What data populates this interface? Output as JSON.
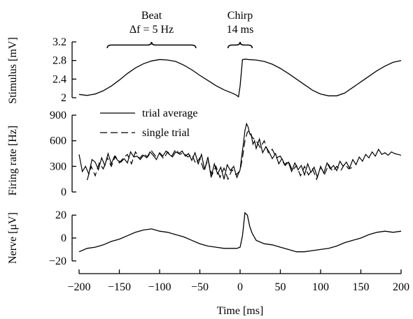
{
  "chart_data": [
    {
      "type": "line",
      "panel": "stimulus",
      "ylabel": "Stimulus [mV]",
      "ylim": [
        2.0,
        3.2
      ],
      "yticks": [
        2,
        2.4,
        2.8,
        3.2
      ],
      "ytick_labels": [
        "2",
        "2.4",
        "2.8",
        "3.2"
      ],
      "xlim": [
        -200,
        200
      ],
      "annotations": [
        {
          "label": "Beat",
          "sublabel": "Δf = 5 Hz",
          "x_range": [
            -165,
            -55
          ]
        },
        {
          "label": "Chirp",
          "sublabel": "14 ms",
          "x_range": [
            -15,
            15
          ]
        }
      ],
      "series": [
        {
          "x": [
            -200,
            -190,
            -180,
            -170,
            -160,
            -150,
            -140,
            -130,
            -120,
            -110,
            -100,
            -90,
            -80,
            -70,
            -60,
            -50,
            -40,
            -30,
            -20,
            -10,
            -5,
            -2,
            0,
            3,
            7,
            10,
            20,
            30,
            40,
            50,
            60,
            70,
            80,
            90,
            100,
            110,
            120,
            130,
            140,
            150,
            160,
            170,
            180,
            190,
            200
          ],
          "y": [
            2.07,
            2.05,
            2.08,
            2.15,
            2.25,
            2.38,
            2.52,
            2.64,
            2.73,
            2.79,
            2.82,
            2.81,
            2.78,
            2.7,
            2.6,
            2.48,
            2.37,
            2.26,
            2.17,
            2.1,
            2.06,
            2.02,
            2.25,
            2.82,
            2.83,
            2.82,
            2.81,
            2.78,
            2.72,
            2.63,
            2.52,
            2.4,
            2.28,
            2.16,
            2.08,
            2.04,
            2.04,
            2.1,
            2.22,
            2.34,
            2.46,
            2.58,
            2.68,
            2.76,
            2.8
          ]
        }
      ]
    },
    {
      "type": "line",
      "panel": "firing-rate",
      "ylabel": "Firing rate [Hz]",
      "ylim": [
        0,
        900
      ],
      "yticks": [
        0,
        300,
        600,
        900
      ],
      "ytick_labels": [
        "0",
        "300",
        "600",
        "900"
      ],
      "xlim": [
        -200,
        200
      ],
      "legend": "top-left",
      "series": [
        {
          "name": "trial average",
          "style": "solid",
          "x": [
            -200,
            -196,
            -192,
            -188,
            -184,
            -180,
            -176,
            -172,
            -168,
            -164,
            -160,
            -156,
            -152,
            -148,
            -144,
            -140,
            -136,
            -132,
            -128,
            -124,
            -120,
            -116,
            -112,
            -108,
            -104,
            -100,
            -96,
            -92,
            -88,
            -84,
            -80,
            -76,
            -72,
            -68,
            -64,
            -60,
            -56,
            -52,
            -48,
            -44,
            -40,
            -36,
            -32,
            -28,
            -24,
            -20,
            -16,
            -12,
            -8,
            -4,
            0,
            2,
            4,
            6,
            8,
            10,
            12,
            14,
            16,
            18,
            20,
            24,
            28,
            32,
            36,
            40,
            44,
            48,
            52,
            56,
            60,
            64,
            68,
            72,
            76,
            80,
            84,
            88,
            92,
            96,
            100,
            104,
            108,
            112,
            116,
            120,
            124,
            128,
            132,
            136,
            140,
            144,
            148,
            152,
            156,
            160,
            164,
            168,
            172,
            176,
            180,
            184,
            188,
            192,
            196,
            200
          ],
          "y": [
            440,
            240,
            300,
            210,
            380,
            350,
            260,
            400,
            310,
            450,
            330,
            420,
            370,
            350,
            390,
            340,
            470,
            410,
            420,
            380,
            430,
            400,
            470,
            430,
            380,
            460,
            420,
            480,
            440,
            410,
            470,
            450,
            480,
            420,
            450,
            370,
            460,
            330,
            440,
            260,
            410,
            170,
            330,
            210,
            290,
            150,
            320,
            250,
            300,
            170,
            260,
            420,
            560,
            720,
            800,
            760,
            680,
            660,
            560,
            600,
            510,
            620,
            460,
            530,
            470,
            390,
            450,
            330,
            390,
            310,
            350,
            240,
            340,
            260,
            310,
            200,
            330,
            230,
            290,
            170,
            300,
            220,
            340,
            270,
            310,
            250,
            360,
            300,
            350,
            280,
            380,
            320,
            410,
            360,
            440,
            400,
            470,
            420,
            500,
            440,
            460,
            430,
            470,
            450,
            440,
            430
          ]
        },
        {
          "name": "single trial",
          "style": "dashed",
          "x": [
            -190,
            -185,
            -180,
            -175,
            -170,
            -165,
            -160,
            -155,
            -150,
            -145,
            -140,
            -135,
            -130,
            -125,
            -120,
            -115,
            -110,
            -105,
            -100,
            -95,
            -90,
            -85,
            -80,
            -75,
            -70,
            -65,
            -60,
            -55,
            -50,
            -45,
            -40,
            -35,
            -30,
            -25,
            -20,
            -15,
            -10,
            -5,
            0,
            3,
            6,
            9,
            12,
            15,
            20,
            25,
            30,
            35,
            40,
            45,
            50,
            55,
            60,
            65,
            70,
            75,
            80,
            85,
            90,
            95,
            100,
            105,
            110,
            115,
            120,
            125,
            130,
            135,
            140
          ],
          "y": [
            140,
            300,
            190,
            340,
            270,
            400,
            300,
            420,
            340,
            400,
            440,
            330,
            470,
            390,
            450,
            410,
            480,
            420,
            450,
            390,
            470,
            420,
            500,
            440,
            460,
            410,
            440,
            330,
            400,
            250,
            380,
            200,
            300,
            170,
            280,
            150,
            260,
            200,
            250,
            400,
            600,
            700,
            720,
            640,
            600,
            520,
            600,
            460,
            500,
            400,
            420,
            320,
            360,
            250,
            310,
            190,
            300,
            200,
            270,
            150,
            290,
            210,
            320,
            240,
            300,
            250,
            330,
            270,
            290
          ]
        }
      ]
    },
    {
      "type": "line",
      "panel": "nerve",
      "ylabel": "Nerve [μV]",
      "xlabel": "Time [ms]",
      "ylim": [
        -25,
        25
      ],
      "yticks": [
        -20,
        0,
        20
      ],
      "ytick_labels": [
        "−20",
        "0",
        "20"
      ],
      "xlim": [
        -200,
        200
      ],
      "xticks": [
        -200,
        -150,
        -100,
        -50,
        0,
        50,
        100,
        150,
        200
      ],
      "xtick_labels": [
        "−200",
        "−150",
        "−100",
        "−50",
        "0",
        "50",
        "100",
        "150",
        "200"
      ],
      "series": [
        {
          "x": [
            -200,
            -190,
            -180,
            -170,
            -160,
            -150,
            -140,
            -130,
            -120,
            -110,
            -100,
            -90,
            -80,
            -70,
            -60,
            -50,
            -40,
            -30,
            -20,
            -10,
            -4,
            0,
            3,
            6,
            9,
            12,
            15,
            20,
            30,
            40,
            50,
            60,
            70,
            80,
            90,
            100,
            110,
            120,
            130,
            140,
            150,
            160,
            170,
            180,
            190,
            200
          ],
          "y": [
            -12,
            -9,
            -8,
            -6,
            -3,
            -1,
            2,
            5,
            7,
            8,
            6,
            5,
            3,
            1,
            -2,
            -5,
            -7,
            -8,
            -9,
            -9,
            -9,
            -8,
            2,
            22,
            20,
            10,
            4,
            -2,
            -5,
            -6,
            -8,
            -10,
            -12,
            -12,
            -11,
            -10,
            -9,
            -7,
            -4,
            -2,
            0,
            3,
            5,
            6,
            5,
            6
          ]
        }
      ]
    }
  ]
}
